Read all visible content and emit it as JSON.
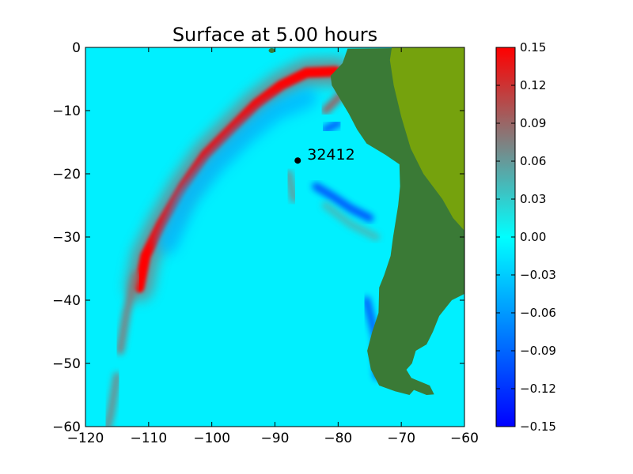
{
  "chart_data": {
    "type": "heatmap",
    "title": "Surface at 5.00 hours",
    "xlim": [
      -120,
      -60
    ],
    "ylim": [
      -60,
      0
    ],
    "x_ticks": [
      -120,
      -110,
      -100,
      -90,
      -80,
      -70,
      -60
    ],
    "y_ticks": [
      0,
      -10,
      -20,
      -30,
      -40,
      -50,
      -60
    ],
    "x_tick_labels": [
      "−120",
      "−110",
      "−100",
      "−90",
      "−80",
      "−70",
      "−60"
    ],
    "y_tick_labels": [
      "0",
      "−10",
      "−20",
      "−30",
      "−40",
      "−50",
      "−60"
    ],
    "colorbar": {
      "range": [
        -0.15,
        0.15
      ],
      "ticks": [
        0.15,
        0.12,
        0.09,
        0.06,
        0.03,
        0.0,
        -0.03,
        -0.06,
        -0.09,
        -0.12,
        -0.15
      ],
      "tick_labels": [
        "0.15",
        "0.12",
        "0.09",
        "0.06",
        "0.03",
        "0.00",
        "−0.03",
        "−0.06",
        "−0.09",
        "−0.12",
        "−0.15"
      ],
      "colormap": [
        "#0000ff",
        "#00ffff",
        "#808080",
        "#ff0000"
      ]
    },
    "station": {
      "id": "32412",
      "x": -86.4,
      "y": -17.9
    },
    "land_color": "#3a7a36",
    "highland_color": "#8ab000",
    "ocean_color": "#00f0ff",
    "wave_front_color": "#ff0000",
    "wave_features": [
      {
        "kind": "leading-crest",
        "points": [
          [
            -111.5,
            -38
          ],
          [
            -110.5,
            -33
          ],
          [
            -108,
            -28
          ],
          [
            -104.5,
            -22
          ],
          [
            -101,
            -17
          ],
          [
            -97,
            -13
          ],
          [
            -93,
            -9
          ],
          [
            -89,
            -6
          ],
          [
            -85,
            -4
          ],
          [
            -80.5,
            -3.8
          ],
          [
            -78.5,
            -4.5
          ]
        ],
        "value": 0.15
      },
      {
        "kind": "trailing-crest",
        "points": [
          [
            -115,
            -52
          ],
          [
            -116,
            -58
          ],
          [
            -116.5,
            -60
          ]
        ],
        "value": 0.07
      },
      {
        "kind": "trailing-crest",
        "points": [
          [
            -112,
            -36
          ],
          [
            -113.5,
            -42
          ],
          [
            -114.5,
            -48
          ]
        ],
        "value": 0.08
      },
      {
        "kind": "trough-band",
        "points": [
          [
            -107,
            -31
          ],
          [
            -104,
            -24
          ],
          [
            -100,
            -19
          ],
          [
            -95,
            -14
          ],
          [
            -90,
            -10
          ],
          [
            -85,
            -8
          ]
        ],
        "value": -0.04
      },
      {
        "kind": "trough",
        "points": [
          [
            -83.5,
            -22
          ],
          [
            -81,
            -23.5
          ],
          [
            -78,
            -25.5
          ],
          [
            -75,
            -27
          ]
        ],
        "value": -0.11
      },
      {
        "kind": "trough",
        "points": [
          [
            -82,
            -13
          ],
          [
            -80,
            -12
          ]
        ],
        "value": -0.1
      },
      {
        "kind": "trough",
        "points": [
          [
            -75.5,
            -40
          ],
          [
            -74,
            -46
          ],
          [
            -73.8,
            -52
          ]
        ],
        "value": -0.1
      },
      {
        "kind": "crest",
        "points": [
          [
            -87.8,
            -20
          ],
          [
            -87,
            -24
          ]
        ],
        "value": 0.06
      },
      {
        "kind": "crest",
        "points": [
          [
            -82,
            -10
          ],
          [
            -79,
            -7
          ]
        ],
        "value": 0.1
      },
      {
        "kind": "crest",
        "points": [
          [
            -82,
            -25
          ],
          [
            -78,
            -28
          ],
          [
            -74,
            -30
          ]
        ],
        "value": 0.04
      }
    ],
    "coastline": {
      "south_america": [
        [
          -78.5,
          -0.2
        ],
        [
          -79.3,
          -2.5
        ],
        [
          -81.2,
          -4.5
        ],
        [
          -81,
          -6
        ],
        [
          -79.8,
          -8
        ],
        [
          -78.3,
          -10.5
        ],
        [
          -77,
          -13
        ],
        [
          -75.5,
          -15.2
        ],
        [
          -72.5,
          -17
        ],
        [
          -70.3,
          -18.5
        ],
        [
          -70.2,
          -22
        ],
        [
          -70.5,
          -25
        ],
        [
          -71.3,
          -30
        ],
        [
          -71.7,
          -33
        ],
        [
          -72.7,
          -36
        ],
        [
          -73.5,
          -38
        ],
        [
          -73.6,
          -42
        ],
        [
          -74.6,
          -45
        ],
        [
          -75.4,
          -48
        ],
        [
          -74.8,
          -51
        ],
        [
          -73.5,
          -53.5
        ],
        [
          -71,
          -54.4
        ],
        [
          -68.7,
          -55
        ],
        [
          -68,
          -54.2
        ],
        [
          -66,
          -55
        ],
        [
          -64.8,
          -54.9
        ],
        [
          -65.5,
          -53.5
        ],
        [
          -68.4,
          -52.3
        ],
        [
          -69.2,
          -51
        ],
        [
          -68.3,
          -50
        ],
        [
          -67.7,
          -48
        ],
        [
          -66,
          -47
        ],
        [
          -65,
          -45
        ],
        [
          -64,
          -42.5
        ],
        [
          -62,
          -40
        ],
        [
          -60,
          -39
        ],
        [
          -60,
          0
        ]
      ],
      "highlands": [
        [
          -71.5,
          0
        ],
        [
          -60,
          0
        ],
        [
          -60,
          -29
        ],
        [
          -61.8,
          -27
        ],
        [
          -63.5,
          -24
        ],
        [
          -66.5,
          -20
        ],
        [
          -68.5,
          -16
        ],
        [
          -70,
          -11
        ],
        [
          -71.2,
          -6
        ],
        [
          -71.8,
          -2
        ]
      ],
      "galapagos": [
        -90.5,
        -0.5
      ]
    }
  }
}
